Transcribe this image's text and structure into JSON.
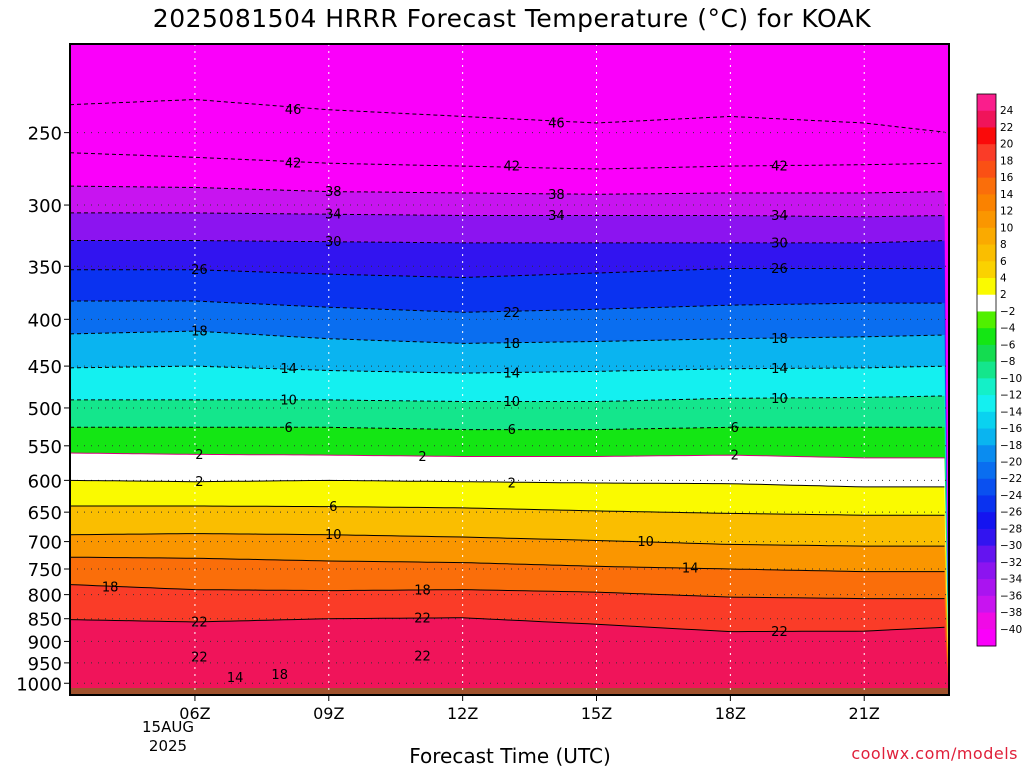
{
  "chart_data": {
    "type": "heatmap",
    "title": "2025081504 HRRR Forecast Temperature (°C) for KOAK",
    "xlabel": "Forecast Time (UTC)",
    "ylabel": "",
    "x_ticks": [
      "06Z",
      "09Z",
      "12Z",
      "15Z",
      "18Z",
      "21Z"
    ],
    "x_hours": [
      6,
      9,
      12,
      15,
      18,
      21
    ],
    "xlim": [
      3.2,
      22.9
    ],
    "date_label": [
      "15AUG",
      "2025"
    ],
    "y_ticks": [
      250,
      300,
      350,
      400,
      450,
      500,
      550,
      600,
      650,
      700,
      750,
      800,
      850,
      900,
      950,
      1000
    ],
    "ylim": [
      200,
      1030
    ],
    "y_scale": "log",
    "surface_pressure": 1012,
    "grid": true,
    "colorbar": {
      "ticks": [
        24,
        22,
        20,
        18,
        16,
        14,
        12,
        10,
        8,
        6,
        4,
        2,
        -2,
        -4,
        -6,
        -8,
        -10,
        -12,
        -14,
        -16,
        -18,
        -20,
        -22,
        -24,
        -26,
        -28,
        -30,
        -32,
        -34,
        -36,
        -38,
        -40
      ],
      "colors": [
        "#fa1e8c",
        "#f0145a",
        "#fa0a0a",
        "#fa3c28",
        "#fa5014",
        "#fa6e0a",
        "#fa8200",
        "#fa9600",
        "#faaa00",
        "#fabe00",
        "#fad200",
        "#fafa00",
        "#ffffff",
        "#50f000",
        "#14e614",
        "#14dc50",
        "#14e68c",
        "#14f0c8",
        "#14f0f0",
        "#0ad2f0",
        "#0ab4f0",
        "#0a8cf0",
        "#0a6ef0",
        "#0a50f0",
        "#0a32f0",
        "#1414f0",
        "#3214f0",
        "#6414f0",
        "#8c14f0",
        "#aa14f0",
        "#c814f0",
        "#f00ae6",
        "#fa00fa"
      ]
    },
    "isotherms": [
      {
        "value": -46,
        "points": [
          [
            3.2,
            233
          ],
          [
            6,
            230
          ],
          [
            9,
            236
          ],
          [
            12,
            240
          ],
          [
            15,
            244
          ],
          [
            18,
            240
          ],
          [
            21,
            244
          ],
          [
            22.9,
            250
          ]
        ]
      },
      {
        "value": -42,
        "points": [
          [
            3.2,
            263
          ],
          [
            6,
            266
          ],
          [
            9,
            270
          ],
          [
            12,
            272
          ],
          [
            15,
            274
          ],
          [
            18,
            272
          ],
          [
            21,
            271
          ],
          [
            22.9,
            270
          ]
        ]
      },
      {
        "value": -38,
        "points": [
          [
            3.2,
            286
          ],
          [
            6,
            287
          ],
          [
            9,
            290
          ],
          [
            12,
            291
          ],
          [
            15,
            292
          ],
          [
            18,
            291
          ],
          [
            21,
            291
          ],
          [
            22.9,
            290
          ]
        ]
      },
      {
        "value": -34,
        "points": [
          [
            3.2,
            306
          ],
          [
            6,
            306
          ],
          [
            9,
            307
          ],
          [
            12,
            308
          ],
          [
            15,
            308
          ],
          [
            18,
            308
          ],
          [
            21,
            309
          ],
          [
            22.9,
            308
          ]
        ]
      },
      {
        "value": -30,
        "points": [
          [
            3.2,
            328
          ],
          [
            6,
            328
          ],
          [
            9,
            329
          ],
          [
            12,
            330
          ],
          [
            15,
            330
          ],
          [
            18,
            330
          ],
          [
            21,
            330
          ],
          [
            22.9,
            328
          ]
        ]
      },
      {
        "value": -26,
        "points": [
          [
            3.2,
            353
          ],
          [
            6,
            353
          ],
          [
            9,
            357
          ],
          [
            12,
            360
          ],
          [
            15,
            356
          ],
          [
            18,
            352
          ],
          [
            21,
            352
          ],
          [
            22.9,
            352
          ]
        ]
      },
      {
        "value": -22,
        "points": [
          [
            3.2,
            382
          ],
          [
            6,
            382
          ],
          [
            9,
            388
          ],
          [
            12,
            393
          ],
          [
            15,
            390
          ],
          [
            18,
            386
          ],
          [
            21,
            384
          ],
          [
            22.9,
            384
          ]
        ]
      },
      {
        "value": -18,
        "points": [
          [
            3.2,
            415
          ],
          [
            6,
            412
          ],
          [
            9,
            420
          ],
          [
            12,
            425
          ],
          [
            15,
            423
          ],
          [
            18,
            420
          ],
          [
            21,
            418
          ],
          [
            22.9,
            416
          ]
        ]
      },
      {
        "value": -14,
        "points": [
          [
            3.2,
            452
          ],
          [
            6,
            450
          ],
          [
            9,
            455
          ],
          [
            12,
            458
          ],
          [
            15,
            456
          ],
          [
            18,
            453
          ],
          [
            21,
            452
          ],
          [
            22.9,
            450
          ]
        ]
      },
      {
        "value": -10,
        "points": [
          [
            3.2,
            490
          ],
          [
            6,
            490
          ],
          [
            9,
            490
          ],
          [
            12,
            492
          ],
          [
            15,
            492
          ],
          [
            18,
            488
          ],
          [
            21,
            487
          ],
          [
            22.9,
            485
          ]
        ]
      },
      {
        "value": -6,
        "points": [
          [
            3.2,
            525
          ],
          [
            6,
            525
          ],
          [
            9,
            525
          ],
          [
            12,
            528
          ],
          [
            15,
            528
          ],
          [
            18,
            525
          ],
          [
            21,
            525
          ],
          [
            22.9,
            525
          ]
        ]
      },
      {
        "value": -2,
        "points": [
          [
            3.2,
            560
          ],
          [
            6,
            562
          ],
          [
            9,
            563
          ],
          [
            12,
            565
          ],
          [
            15,
            565
          ],
          [
            18,
            563
          ],
          [
            21,
            567
          ],
          [
            22.9,
            567
          ]
        ]
      },
      {
        "value": 2,
        "points": [
          [
            3.2,
            600
          ],
          [
            6,
            602
          ],
          [
            9,
            600
          ],
          [
            12,
            602
          ],
          [
            15,
            604
          ],
          [
            18,
            605
          ],
          [
            21,
            610
          ],
          [
            22.9,
            610
          ]
        ]
      },
      {
        "value": 6,
        "points": [
          [
            3.2,
            640
          ],
          [
            6,
            640
          ],
          [
            9,
            641
          ],
          [
            12,
            643
          ],
          [
            15,
            648
          ],
          [
            18,
            652
          ],
          [
            21,
            655
          ],
          [
            22.9,
            655
          ]
        ]
      },
      {
        "value": 10,
        "points": [
          [
            3.2,
            688
          ],
          [
            6,
            686
          ],
          [
            9,
            688
          ],
          [
            12,
            692
          ],
          [
            15,
            698
          ],
          [
            18,
            705
          ],
          [
            21,
            708
          ],
          [
            22.9,
            708
          ]
        ]
      },
      {
        "value": 14,
        "points": [
          [
            3.2,
            728
          ],
          [
            6,
            730
          ],
          [
            9,
            735
          ],
          [
            12,
            738
          ],
          [
            15,
            745
          ],
          [
            18,
            750
          ],
          [
            21,
            755
          ],
          [
            22.9,
            755
          ]
        ]
      },
      {
        "value": 18,
        "points": [
          [
            3.2,
            780
          ],
          [
            6,
            790
          ],
          [
            9,
            792
          ],
          [
            12,
            790
          ],
          [
            15,
            795
          ],
          [
            18,
            805
          ],
          [
            21,
            808
          ],
          [
            22.9,
            808
          ]
        ]
      },
      {
        "value": 22,
        "points": [
          [
            3.2,
            852
          ],
          [
            6,
            857
          ],
          [
            9,
            850
          ],
          [
            12,
            848
          ],
          [
            15,
            862
          ],
          [
            18,
            878
          ],
          [
            21,
            877
          ],
          [
            22.9,
            868
          ]
        ]
      }
    ],
    "isotherm_labels": [
      {
        "text": "46",
        "x": 8.2,
        "p": 236
      },
      {
        "text": "46",
        "x": 14.1,
        "p": 244
      },
      {
        "text": "42",
        "x": 8.2,
        "p": 270
      },
      {
        "text": "42",
        "x": 13.1,
        "p": 272
      },
      {
        "text": "42",
        "x": 19.1,
        "p": 272
      },
      {
        "text": "38",
        "x": 9.1,
        "p": 290
      },
      {
        "text": "38",
        "x": 14.1,
        "p": 292
      },
      {
        "text": "34",
        "x": 9.1,
        "p": 307
      },
      {
        "text": "34",
        "x": 14.1,
        "p": 308
      },
      {
        "text": "34",
        "x": 19.1,
        "p": 308
      },
      {
        "text": "30",
        "x": 9.1,
        "p": 329
      },
      {
        "text": "30",
        "x": 19.1,
        "p": 330
      },
      {
        "text": "26",
        "x": 6.1,
        "p": 353
      },
      {
        "text": "26",
        "x": 19.1,
        "p": 352
      },
      {
        "text": "22",
        "x": 13.1,
        "p": 393
      },
      {
        "text": "18",
        "x": 6.1,
        "p": 412
      },
      {
        "text": "18",
        "x": 13.1,
        "p": 425
      },
      {
        "text": "18",
        "x": 19.1,
        "p": 420
      },
      {
        "text": "14",
        "x": 8.1,
        "p": 453
      },
      {
        "text": "14",
        "x": 13.1,
        "p": 458
      },
      {
        "text": "14",
        "x": 19.1,
        "p": 453
      },
      {
        "text": "10",
        "x": 8.1,
        "p": 490
      },
      {
        "text": "10",
        "x": 13.1,
        "p": 492
      },
      {
        "text": "10",
        "x": 19.1,
        "p": 488
      },
      {
        "text": "6",
        "x": 8.1,
        "p": 525
      },
      {
        "text": "6",
        "x": 13.1,
        "p": 528
      },
      {
        "text": "6",
        "x": 18.1,
        "p": 525
      },
      {
        "text": "2",
        "x": 6.1,
        "p": 562
      },
      {
        "text": "2",
        "x": 11.1,
        "p": 565
      },
      {
        "text": "2",
        "x": 18.1,
        "p": 563
      },
      {
        "text": "2",
        "x": 6.1,
        "p": 602
      },
      {
        "text": "2",
        "x": 13.1,
        "p": 604
      },
      {
        "text": "6",
        "x": 9.1,
        "p": 641
      },
      {
        "text": "10",
        "x": 9.1,
        "p": 688
      },
      {
        "text": "10",
        "x": 16.1,
        "p": 700
      },
      {
        "text": "14",
        "x": 17.1,
        "p": 748
      },
      {
        "text": "18",
        "x": 4.1,
        "p": 785
      },
      {
        "text": "18",
        "x": 11.1,
        "p": 791
      },
      {
        "text": "22",
        "x": 6.1,
        "p": 857
      },
      {
        "text": "22",
        "x": 11.1,
        "p": 848
      },
      {
        "text": "22",
        "x": 19.1,
        "p": 878
      },
      {
        "text": "22",
        "x": 6.1,
        "p": 936
      },
      {
        "text": "22",
        "x": 11.1,
        "p": 934
      },
      {
        "text": "14",
        "x": 6.9,
        "p": 986
      },
      {
        "text": "18",
        "x": 7.9,
        "p": 978
      }
    ]
  }
}
